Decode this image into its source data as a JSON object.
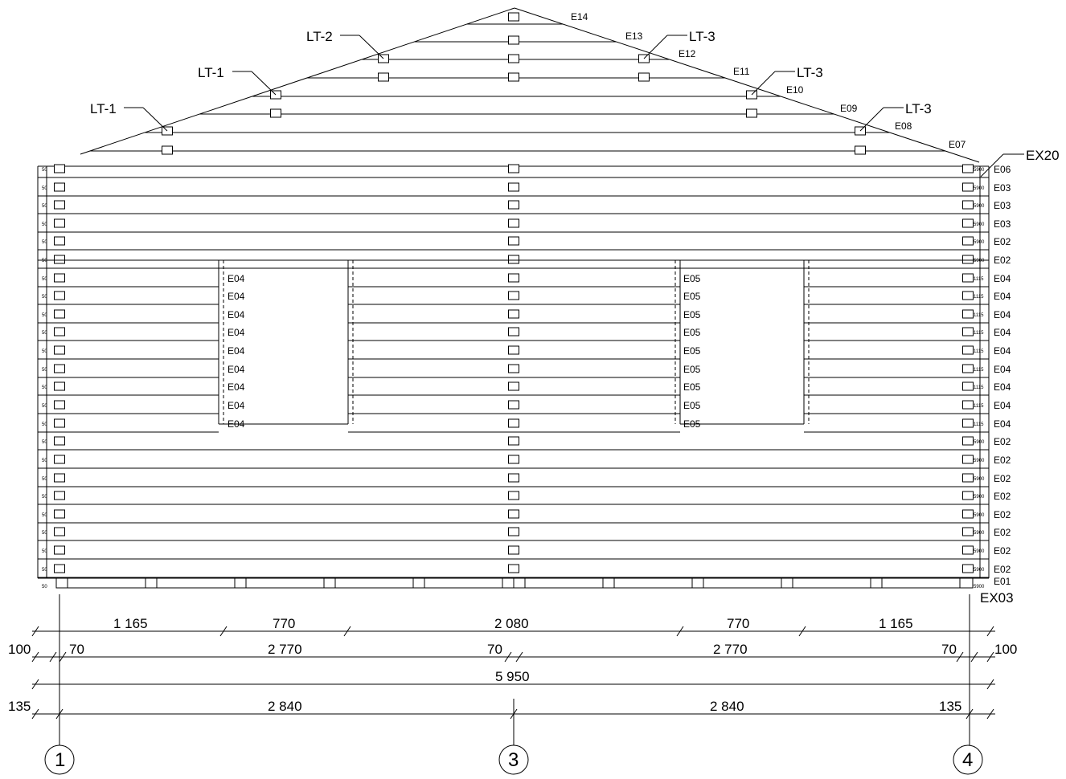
{
  "callouts": {
    "lt_2": "LT-2",
    "lt_1_upper": "LT-1",
    "lt_1_lower": "LT-1",
    "lt_3_top": "LT-3",
    "lt_3_mid": "LT-3",
    "lt_3_low": "LT-3",
    "ex20": "EX20",
    "ex03": "EX03"
  },
  "gable_labels": [
    "E14",
    "E13",
    "E12",
    "E11",
    "E10",
    "E09",
    "E08",
    "E07"
  ],
  "right_labels": [
    "E06",
    "E03",
    "E03",
    "E03",
    "E02",
    "E02",
    "E04",
    "E04",
    "E04",
    "E04",
    "E04",
    "E04",
    "E04",
    "E04",
    "E04",
    "E02",
    "E02",
    "E02",
    "E02",
    "E02",
    "E02",
    "E02",
    "E02",
    "E01"
  ],
  "right_lengths": [
    "5900",
    "5900",
    "5900",
    "5900",
    "5900",
    "5900",
    "1115",
    "1115",
    "1115",
    "1115",
    "1115",
    "1115",
    "1115",
    "1115",
    "1115",
    "5900",
    "5900",
    "5900",
    "5900",
    "5900",
    "5900",
    "5900",
    "5900",
    "5900"
  ],
  "left_lengths": [
    "50",
    "50",
    "50",
    "50",
    "50",
    "50",
    "50",
    "50",
    "50",
    "50",
    "50",
    "50",
    "50",
    "50",
    "50",
    "50",
    "50",
    "50",
    "50",
    "50",
    "50",
    "50",
    "50",
    "50"
  ],
  "opening_left_labels": [
    "E04",
    "E04",
    "E04",
    "E04",
    "E04",
    "E04",
    "E04",
    "E04",
    "E04"
  ],
  "opening_right_labels": [
    "E05",
    "E05",
    "E05",
    "E05",
    "E05",
    "E05",
    "E05",
    "E05",
    "E05"
  ],
  "dimensions": {
    "row1": [
      "1 165",
      "770",
      "2 080",
      "770",
      "1 165"
    ],
    "row2_left_edge": "100",
    "row2_left_small": "70",
    "row2_left_main": "2 770",
    "row2_mid_small": "70",
    "row2_right_main": "2 770",
    "row2_right_small": "70",
    "row2_right_edge": "100",
    "row3_total": "5 950",
    "row4_left_edge": "135",
    "row4_left": "2 840",
    "row4_right": "2 840",
    "row4_right_edge": "135"
  },
  "axes": [
    "1",
    "3",
    "4"
  ]
}
